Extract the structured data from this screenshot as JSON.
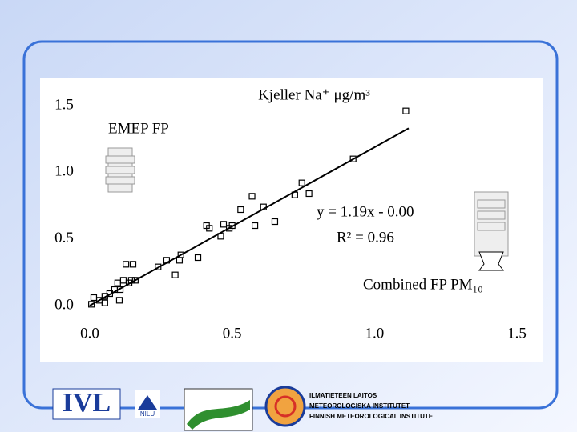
{
  "chart_data": {
    "type": "scatter",
    "title": "Kjeller Na⁺ μg/m³",
    "annotations": [
      "EMEP FP",
      "y = 1.19x - 0.00",
      "R² = 0.96",
      "Combined FP PM₁₀"
    ],
    "x": [
      0.006,
      0.014,
      0.034,
      0.053,
      0.053,
      0.07,
      0.087,
      0.098,
      0.104,
      0.107,
      0.118,
      0.127,
      0.138,
      0.146,
      0.152,
      0.16,
      0.24,
      0.27,
      0.3,
      0.315,
      0.32,
      0.38,
      0.41,
      0.42,
      0.46,
      0.47,
      0.49,
      0.5,
      0.53,
      0.57,
      0.58,
      0.61,
      0.65,
      0.72,
      0.745,
      0.77,
      0.925,
      1.11
    ],
    "values": [
      0.01,
      0.06,
      0.04,
      0.02,
      0.07,
      0.09,
      0.12,
      0.17,
      0.04,
      0.12,
      0.19,
      0.31,
      0.17,
      0.19,
      0.31,
      0.19,
      0.29,
      0.34,
      0.23,
      0.34,
      0.38,
      0.36,
      0.6,
      0.58,
      0.52,
      0.61,
      0.58,
      0.6,
      0.72,
      0.82,
      0.6,
      0.74,
      0.63,
      0.83,
      0.92,
      0.84,
      1.1,
      1.46
    ],
    "color": "#000000",
    "fit_line": {
      "x": [
        0,
        1.12
      ],
      "values": [
        0,
        1.33
      ]
    },
    "xlim": [
      0,
      1.5
    ],
    "ylim": [
      0,
      1.5
    ],
    "xticks": [
      {
        "value": 0,
        "label": "0.0"
      },
      0.5,
      {
        "value": 1,
        "label": "1.0"
      },
      1.5
    ],
    "yticks": [
      {
        "value": 0,
        "label": "0.0"
      },
      0.5,
      {
        "value": 1,
        "label": "1.0"
      },
      1.5
    ]
  },
  "logos": [
    "IVL",
    "NILU",
    "ILMATIETEEN LAITOS",
    "METEOROLOGISKA INSTITUTET",
    "FINNISH METEOROLOGICAL INSTITUTE"
  ]
}
